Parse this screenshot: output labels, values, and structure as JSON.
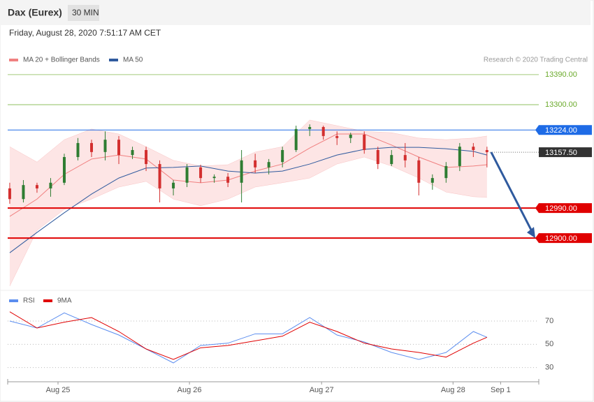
{
  "header": {
    "title": "Dax (Eurex)",
    "timeframe": "30 MIN",
    "timestamp": "Friday, August 28, 2020 7:51:17 AM CET",
    "credit": "Research © 2020 Trading Central"
  },
  "chart_data": [
    {
      "type": "candlestick",
      "x": [
        0,
        1,
        2,
        3,
        4,
        5,
        6,
        7,
        8,
        9,
        10,
        11,
        12,
        13,
        14,
        15,
        16,
        17,
        18,
        19,
        20,
        21,
        22,
        23,
        24,
        25,
        26,
        27,
        28,
        29,
        30,
        31,
        32,
        33,
        34,
        35
      ],
      "open": [
        13049,
        13017,
        13059,
        13049,
        13066,
        13143,
        13185,
        13158,
        13195,
        13149,
        13164,
        13122,
        13049,
        13066,
        13112,
        13080,
        13084,
        13066,
        13133,
        13112,
        13128,
        13164,
        13227,
        13233,
        13206,
        13200,
        13210,
        13164,
        13122,
        13149,
        13133,
        13066,
        13080,
        13116,
        13174,
        13164
      ],
      "high": [
        13066,
        13074,
        13066,
        13080,
        13153,
        13200,
        13195,
        13220,
        13206,
        13174,
        13174,
        13133,
        13074,
        13122,
        13120,
        13091,
        13095,
        13164,
        13153,
        13137,
        13174,
        13237,
        13241,
        13237,
        13220,
        13216,
        13220,
        13174,
        13164,
        13185,
        13143,
        13091,
        13128,
        13185,
        13185,
        13174
      ],
      "low": [
        13003,
        13007,
        13036,
        13024,
        13059,
        13133,
        13143,
        13133,
        13122,
        13137,
        13101,
        13007,
        13028,
        13053,
        13066,
        13066,
        13053,
        13007,
        13095,
        13091,
        13112,
        13158,
        13206,
        13195,
        13179,
        13185,
        13153,
        13107,
        13116,
        13112,
        13028,
        13045,
        13066,
        13101,
        13143,
        13112
      ],
      "close": [
        13017,
        13059,
        13049,
        13066,
        13143,
        13185,
        13158,
        13195,
        13149,
        13164,
        13122,
        13049,
        13066,
        13112,
        13080,
        13084,
        13066,
        13133,
        13112,
        13128,
        13164,
        13227,
        13233,
        13206,
        13200,
        13210,
        13164,
        13122,
        13149,
        13133,
        13066,
        13080,
        13116,
        13174,
        13164,
        13157.5
      ],
      "up_color": "#2e7d32",
      "down_color": "#d32f2f",
      "overlays": [
        {
          "name": "MA 20 + Bollinger Bands",
          "color": "#f08080",
          "x": [
            0,
            2,
            4,
            6,
            8,
            10,
            12,
            14,
            16,
            18,
            20,
            22,
            24,
            26,
            28,
            30,
            32,
            34,
            35
          ],
          "upper": [
            13174,
            13128,
            13195,
            13227,
            13212,
            13174,
            13133,
            13116,
            13120,
            13158,
            13174,
            13254,
            13237,
            13220,
            13216,
            13200,
            13195,
            13200,
            13206
          ],
          "middle": [
            12965,
            13017,
            13091,
            13137,
            13149,
            13137,
            13074,
            13066,
            13074,
            13101,
            13122,
            13170,
            13212,
            13212,
            13179,
            13143,
            13112,
            13116,
            13120
          ],
          "lower": [
            12756,
            12923,
            12986,
            13017,
            13053,
            13070,
            13017,
            12997,
            13017,
            13053,
            13066,
            13080,
            13122,
            13143,
            13116,
            13080,
            13038,
            13024,
            13022
          ]
        },
        {
          "name": "MA 50",
          "color": "#2f5a9e",
          "x": [
            0,
            2,
            4,
            6,
            8,
            10,
            12,
            14,
            16,
            18,
            20,
            22,
            24,
            26,
            28,
            30,
            32,
            34,
            35
          ],
          "values": [
            12856,
            12917,
            12976,
            13032,
            13080,
            13110,
            13112,
            13116,
            13101,
            13095,
            13101,
            13122,
            13149,
            13166,
            13172,
            13172,
            13168,
            13160,
            13149
          ]
        }
      ],
      "levels": [
        {
          "value": 13390,
          "label": "13390.00",
          "color": "#6aaa2a",
          "style": "text"
        },
        {
          "value": 13300,
          "label": "13300.00",
          "color": "#6aaa2a",
          "style": "text"
        },
        {
          "value": 13224,
          "label": "13224.00",
          "color": "#1e6be6",
          "style": "box"
        },
        {
          "value": 13157.5,
          "label": "13157.50",
          "color": "#333333",
          "style": "current"
        },
        {
          "value": 12990,
          "label": "12990.00",
          "color": "#e00000",
          "style": "box"
        },
        {
          "value": 12900,
          "label": "12900.00",
          "color": "#e00000",
          "style": "box"
        }
      ],
      "target": 12900,
      "xlim": [
        -0.15,
        38.8
      ],
      "ylim": [
        12756,
        13415
      ]
    },
    {
      "type": "line",
      "x": [
        0,
        2,
        4,
        6,
        8,
        10,
        12,
        14,
        16,
        18,
        20,
        22,
        24,
        26,
        28,
        30,
        32,
        34,
        35
      ],
      "series": [
        {
          "name": "RSI",
          "color": "#5b8def",
          "values": [
            70,
            64,
            77,
            67,
            58,
            46,
            34,
            49,
            51,
            59,
            59,
            73,
            58,
            52,
            43,
            37,
            43,
            61,
            56
          ]
        },
        {
          "name": "9MA",
          "color": "#e00000",
          "values": [
            78,
            64,
            69,
            73,
            61,
            46,
            37,
            47,
            49,
            53,
            57,
            69,
            61,
            51,
            46,
            43,
            39,
            51,
            56
          ]
        }
      ],
      "xticks": [
        {
          "value": 3.54,
          "label": "Aug 25"
        },
        {
          "value": 13.18,
          "label": "Aug 26"
        },
        {
          "value": 22.87,
          "label": "Aug 27"
        },
        {
          "value": 32.51,
          "label": "Aug 28"
        },
        {
          "value": 36.0,
          "label": "Sep 1"
        }
      ],
      "yticks": [
        70,
        50,
        30
      ],
      "xlim": [
        -0.15,
        38.8
      ],
      "ylim": [
        19,
        79
      ],
      "grid": true
    }
  ]
}
